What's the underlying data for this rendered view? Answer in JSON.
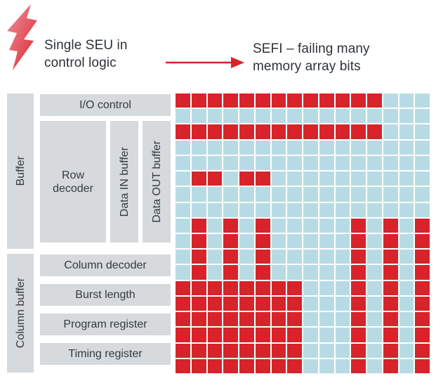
{
  "colors": {
    "failing_bit_red": "#d8232a",
    "normal_bit_blue": "#b7dbe5",
    "block_gray": "#d6dadd",
    "text_dark": "#2d3237",
    "arrow_red": "#d8232a",
    "bolt_pink": "#ef929d"
  },
  "header": {
    "seu_line1": "Single SEU in",
    "seu_line2": "control logic",
    "sefi_line1": "SEFI – failing many",
    "sefi_line2": "memory array bits"
  },
  "blocks": {
    "buffer": "Buffer",
    "column_buffer": "Column buffer",
    "io_control": "I/O control",
    "row_decoder": "Row decoder",
    "data_in_buffer": "Data IN buffer",
    "data_out_buffer": "Data OUT buffer",
    "column_decoder": "Column decoder",
    "burst_length": "Burst length",
    "program_register": "Program register",
    "timing_register": "Timing register"
  },
  "memory_array": {
    "columns": 16,
    "rows": 18,
    "legend": {
      "R": "failing-bit",
      "B": "normal-bit"
    },
    "pattern": [
      "RRRRRRRRRRRRRBBB",
      "BBBBBBBBBBBBBBBB",
      "RRRRRRRRRRRRRBBB",
      "BBBBBBBBBBBBBBBB",
      "BBBBBBBBBBBBBBBB",
      "BRRBRRBBBBBBBBBB",
      "BBBBBBBBBBBBBBBB",
      "BBBBBBBBBBBBBBBB",
      "BRBRBRBBBBBRBRBR",
      "BRBRBRBBBBBRBRBR",
      "BRBRBRBBBBBRBRBR",
      "BRBRBRBBBBBRBRBR",
      "RRRRRRRRBBBRBRBR",
      "RRRRRRRRBBBRBRBR",
      "RRRRRRRRBBBRBRBR",
      "RRRRRRRRBBBRBRBR",
      "RRRRRRRRBBBRBRBR",
      "RRRRRRRRBBBRBRBR"
    ]
  }
}
